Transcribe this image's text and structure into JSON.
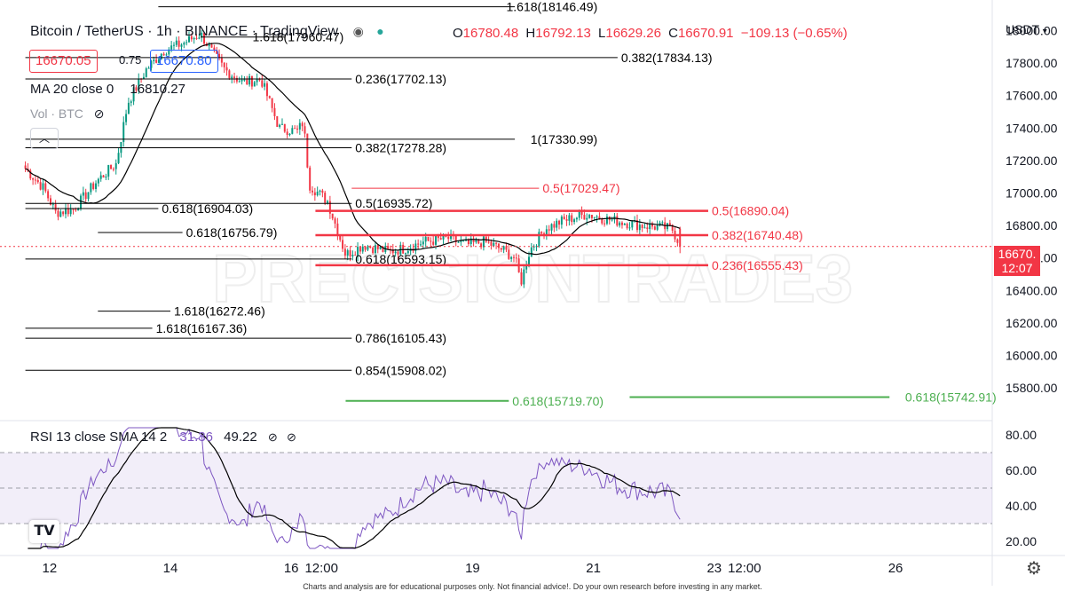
{
  "header": {
    "title": "Bitcoin / TetherUS · 1h · BINANCE · TradingView",
    "ohlc": [
      {
        "k": "O",
        "v": "16780.48"
      },
      {
        "k": "H",
        "v": "16792.13"
      },
      {
        "k": "L",
        "v": "16629.26"
      },
      {
        "k": "C",
        "v": "16670.91"
      },
      {
        "k": "",
        "v": "−109.13 (−0.65%)"
      }
    ],
    "sell_price": "16670.05",
    "spread": "0.75",
    "buy_price": "16670.80",
    "ma_label": "MA 20 close 0",
    "ma_value": "16810.27",
    "vol_label": "Vol · BTC",
    "currency": "USDT",
    "last_price": "16670.",
    "countdown": "12:07",
    "watermark": "PRECISIONTRADE3"
  },
  "rsi_legend": {
    "label": "RSI 13 close SMA 14 2",
    "rsi_value": "31.36",
    "sma_value": "49.22"
  },
  "footer": "Charts and analysis are for educational purposes only. Not financial advice!. Do your own research before investing in any market.",
  "colors": {
    "up": "#089981",
    "down": "#f23645",
    "ma": "#000000",
    "rsi": "#7e57c2",
    "fib_black": "#000000",
    "fib_red": "#f23645",
    "fib_green": "#4caf50"
  },
  "chart_data": {
    "type": "candlestick",
    "x_ticks": [
      "12",
      "14",
      "16",
      "12:00",
      "19",
      "21",
      "23",
      "12:00",
      "26"
    ],
    "x_tick_days": [
      12,
      14,
      16,
      16.5,
      19,
      21,
      23,
      23.5,
      26
    ],
    "y_ticks": [
      15800,
      16000,
      16200,
      16400,
      16600,
      16800,
      17000,
      17200,
      17400,
      17600,
      17800,
      18000
    ],
    "ylim": [
      15620,
      18090
    ],
    "rsi_ticks": [
      20,
      40,
      60,
      80
    ],
    "rsi_lim": [
      14,
      86
    ],
    "rsi_bands": [
      30,
      70
    ],
    "keypoints": [
      {
        "d": 11.6,
        "p": 17150
      },
      {
        "d": 11.9,
        "p": 17030
      },
      {
        "d": 12.1,
        "p": 16880
      },
      {
        "d": 12.4,
        "p": 16900
      },
      {
        "d": 12.8,
        "p": 17080
      },
      {
        "d": 13.1,
        "p": 17180
      },
      {
        "d": 13.3,
        "p": 17560
      },
      {
        "d": 13.6,
        "p": 17760
      },
      {
        "d": 13.9,
        "p": 17880
      },
      {
        "d": 14.2,
        "p": 17920
      },
      {
        "d": 14.5,
        "p": 17980
      },
      {
        "d": 14.7,
        "p": 17860
      },
      {
        "d": 14.9,
        "p": 17760
      },
      {
        "d": 15.2,
        "p": 17680
      },
      {
        "d": 15.5,
        "p": 17700
      },
      {
        "d": 15.8,
        "p": 17400
      },
      {
        "d": 16.1,
        "p": 17380
      },
      {
        "d": 16.2,
        "p": 17440
      },
      {
        "d": 16.3,
        "p": 17050
      },
      {
        "d": 16.6,
        "p": 16950
      },
      {
        "d": 16.9,
        "p": 16620
      },
      {
        "d": 17.2,
        "p": 16680
      },
      {
        "d": 17.6,
        "p": 16640
      },
      {
        "d": 17.9,
        "p": 16660
      },
      {
        "d": 18.2,
        "p": 16700
      },
      {
        "d": 18.6,
        "p": 16720
      },
      {
        "d": 18.9,
        "p": 16680
      },
      {
        "d": 19.2,
        "p": 16700
      },
      {
        "d": 19.5,
        "p": 16650
      },
      {
        "d": 19.7,
        "p": 16600
      },
      {
        "d": 19.8,
        "p": 16450
      },
      {
        "d": 19.95,
        "p": 16650
      },
      {
        "d": 20.2,
        "p": 16780
      },
      {
        "d": 20.5,
        "p": 16830
      },
      {
        "d": 20.9,
        "p": 16870
      },
      {
        "d": 21.2,
        "p": 16840
      },
      {
        "d": 21.5,
        "p": 16820
      },
      {
        "d": 21.8,
        "p": 16800
      },
      {
        "d": 22.1,
        "p": 16790
      },
      {
        "d": 22.3,
        "p": 16780
      },
      {
        "d": 22.45,
        "p": 16670
      }
    ],
    "last": {
      "open": 16780.48,
      "high": 16792.13,
      "low": 16629.26,
      "close": 16670.91
    },
    "ma_period": 20,
    "rsi_period": 13,
    "rsi_sma_period": 14,
    "fib_levels": [
      {
        "label": "1.618(18146.49)",
        "price": 18146.49,
        "d1": 13.8,
        "d2": 19.7,
        "color": "black",
        "label_d": 19.5
      },
      {
        "label": "1.618(17960.47)",
        "price": 17960.47,
        "d1": 14.5,
        "d2": 15.9,
        "color": "black",
        "label_d": 15.3
      },
      {
        "label": "0.382(17834.13)",
        "price": 17834.13,
        "d1": 11.6,
        "d2": 21.4,
        "color": "black",
        "label_d": 21.4
      },
      {
        "label": "0.236(17702.13)",
        "price": 17702.13,
        "d1": 11.6,
        "d2": 17.0,
        "color": "black",
        "label_d": 17.0
      },
      {
        "label": "1(17330.99)",
        "price": 17330.99,
        "d1": 11.6,
        "d2": 19.7,
        "color": "black",
        "label_d": 19.9
      },
      {
        "label": "0.382(17278.28)",
        "price": 17278.28,
        "d1": 11.6,
        "d2": 17.0,
        "color": "black",
        "label_d": 17.0
      },
      {
        "label": "0.5(17029.47)",
        "price": 17029.47,
        "d1": 17.0,
        "d2": 20.1,
        "color": "red",
        "label_d": 20.1
      },
      {
        "label": "0.5(16935.72)",
        "price": 16935.72,
        "d1": 11.6,
        "d2": 17.0,
        "color": "black",
        "label_d": 17.0
      },
      {
        "label": "0.618(16904.03)",
        "price": 16904.03,
        "d1": 11.6,
        "d2": 13.8,
        "color": "black",
        "label_d": 13.8
      },
      {
        "label": "0.5(16890.04)",
        "price": 16890.04,
        "d1": 16.4,
        "d2": 22.9,
        "color": "red",
        "label_d": 22.9,
        "bold": true
      },
      {
        "label": "0.618(16756.79)",
        "price": 16756.79,
        "d1": 12.8,
        "d2": 14.2,
        "color": "black",
        "label_d": 14.2
      },
      {
        "label": "0.382(16740.48)",
        "price": 16740.48,
        "d1": 16.4,
        "d2": 22.9,
        "color": "red",
        "label_d": 22.9,
        "bold": true
      },
      {
        "label": "0.618(16593.15)",
        "price": 16593.15,
        "d1": 11.6,
        "d2": 17.0,
        "color": "black",
        "label_d": 17.0
      },
      {
        "label": "0.236(16555.43)",
        "price": 16555.43,
        "d1": 16.4,
        "d2": 22.9,
        "color": "red",
        "label_d": 22.9,
        "bold": true
      },
      {
        "label": "1.618(16272.46)",
        "price": 16272.46,
        "d1": 12.8,
        "d2": 14.0,
        "color": "black",
        "label_d": 14.0
      },
      {
        "label": "1.618(16167.36)",
        "price": 16167.36,
        "d1": 11.6,
        "d2": 13.7,
        "color": "black",
        "label_d": 13.7
      },
      {
        "label": "0.786(16105.43)",
        "price": 16105.43,
        "d1": 11.6,
        "d2": 17.0,
        "color": "black",
        "label_d": 17.0
      },
      {
        "label": "0.854(15908.02)",
        "price": 15908.02,
        "d1": 11.6,
        "d2": 17.0,
        "color": "black",
        "label_d": 17.0
      },
      {
        "label": "0.618(15719.70)",
        "price": 15719.7,
        "d1": 16.9,
        "d2": 19.6,
        "color": "green",
        "label_d": 19.6
      },
      {
        "label": "0.618(15742.91)",
        "price": 15742.91,
        "d1": 21.6,
        "d2": 25.9,
        "color": "green",
        "label_d": 26.1
      }
    ]
  }
}
